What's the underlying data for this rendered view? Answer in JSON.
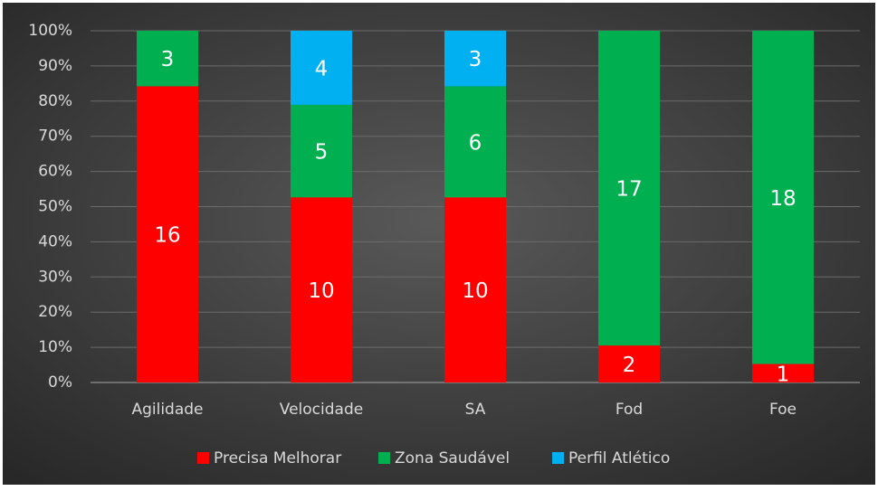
{
  "chart_data": {
    "type": "bar",
    "stacking": "percent",
    "categories": [
      "Agilidade",
      "Velocidade",
      "SA",
      "Fod",
      "Foe"
    ],
    "series": [
      {
        "name": "Precisa Melhorar",
        "color": "#ff0000",
        "values": [
          16,
          10,
          10,
          2,
          1
        ]
      },
      {
        "name": "Zona Saudável",
        "color": "#00b050",
        "values": [
          3,
          5,
          6,
          17,
          18
        ]
      },
      {
        "name": "Perfil Atlético",
        "color": "#00b0f0",
        "values": [
          null,
          4,
          3,
          null,
          null
        ]
      }
    ],
    "ylim": [
      0,
      100
    ],
    "yticks": [
      {
        "value": 0,
        "label": "0%"
      },
      {
        "value": 10,
        "label": "10%"
      },
      {
        "value": 20,
        "label": "20%"
      },
      {
        "value": 30,
        "label": "30%"
      },
      {
        "value": 40,
        "label": "40%"
      },
      {
        "value": 50,
        "label": "50%"
      },
      {
        "value": 60,
        "label": "60%"
      },
      {
        "value": 70,
        "label": "70%"
      },
      {
        "value": 80,
        "label": "80%"
      },
      {
        "value": 90,
        "label": "90%"
      },
      {
        "value": 100,
        "label": "100%"
      }
    ],
    "grid": true,
    "legend": "bottom"
  }
}
